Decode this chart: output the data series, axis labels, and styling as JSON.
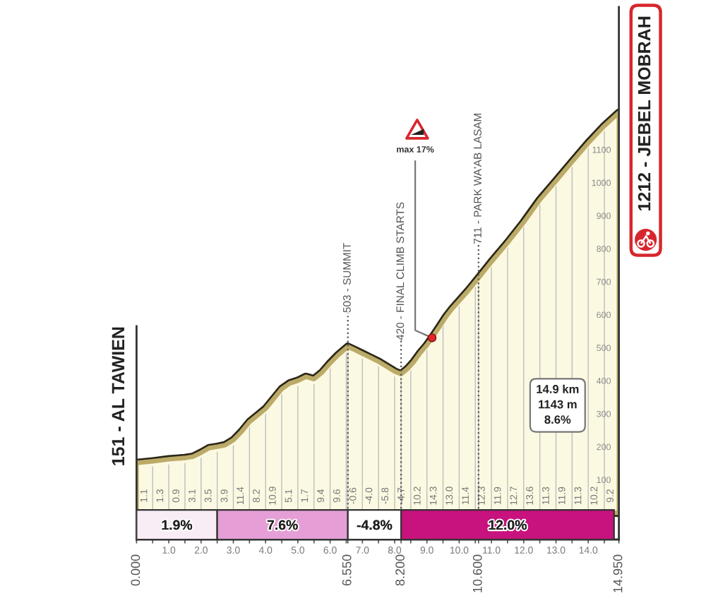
{
  "chart_data": {
    "type": "area",
    "x": [
      0,
      0.5,
      1.0,
      1.5,
      1.75,
      2.0,
      2.25,
      2.5,
      2.75,
      3.0,
      3.25,
      3.5,
      3.75,
      4.0,
      4.25,
      4.5,
      4.75,
      5.0,
      5.25,
      5.5,
      5.75,
      6.0,
      6.25,
      6.55,
      6.75,
      7.0,
      7.25,
      7.5,
      7.75,
      8.0,
      8.2,
      8.4,
      8.6,
      8.8,
      9.0,
      9.16,
      9.4,
      9.6,
      9.8,
      10.0,
      10.3,
      10.6,
      11.0,
      11.5,
      12.0,
      12.5,
      13.0,
      13.5,
      14.0,
      14.5,
      14.95
    ],
    "values": [
      151,
      156,
      162,
      166,
      170,
      182,
      196,
      200,
      205,
      220,
      245,
      275,
      295,
      315,
      345,
      375,
      392,
      400,
      412,
      405,
      425,
      453,
      478,
      503,
      494,
      482,
      470,
      458,
      443,
      428,
      420,
      436,
      458,
      485,
      508,
      530,
      565,
      595,
      620,
      642,
      675,
      711,
      760,
      818,
      880,
      948,
      1005,
      1063,
      1120,
      1172,
      1212
    ],
    "color": "#fcf9e2",
    "xlim": [
      0,
      14.95
    ],
    "ylim": [
      -81,
      1532
    ],
    "xticks": [
      {
        "value": 0,
        "label": null
      },
      {
        "value": 0.5,
        "label": null
      },
      {
        "value": 1,
        "label": "1.0"
      },
      {
        "value": 1.5,
        "label": null
      },
      {
        "value": 2,
        "label": "2.0"
      },
      {
        "value": 2.5,
        "label": null
      },
      {
        "value": 3,
        "label": "3.0"
      },
      {
        "value": 3.5,
        "label": null
      },
      {
        "value": 4,
        "label": "4.0"
      },
      {
        "value": 4.5,
        "label": null
      },
      {
        "value": 5,
        "label": "5.0"
      },
      {
        "value": 5.5,
        "label": null
      },
      {
        "value": 6,
        "label": "6.0"
      },
      {
        "value": 6.5,
        "label": null
      },
      {
        "value": 6.55,
        "label": null
      },
      {
        "value": 7,
        "label": "7.0"
      },
      {
        "value": 7.5,
        "label": null
      },
      {
        "value": 8,
        "label": "8.0"
      },
      {
        "value": 8.2,
        "label": null
      },
      {
        "value": 8.5,
        "label": null
      },
      {
        "value": 9,
        "label": "9.0"
      },
      {
        "value": 9.5,
        "label": null
      },
      {
        "value": 10,
        "label": "10.0"
      },
      {
        "value": 10.5,
        "label": null
      },
      {
        "value": 10.6,
        "label": null
      },
      {
        "value": 11,
        "label": "11.0"
      },
      {
        "value": 11.5,
        "label": null
      },
      {
        "value": 12,
        "label": "12.0"
      },
      {
        "value": 12.5,
        "label": null
      },
      {
        "value": 13,
        "label": "13.0"
      },
      {
        "value": 13.5,
        "label": null
      },
      {
        "value": 14,
        "label": "14.0"
      },
      {
        "value": 14.5,
        "label": null
      },
      {
        "value": 14.95,
        "label": null
      }
    ],
    "yticks": [
      100,
      200,
      300,
      400,
      500,
      600,
      700,
      800,
      900,
      1000,
      1100
    ],
    "grid": "x",
    "ref_lines": [
      {
        "axis": "x",
        "value": 6.55,
        "label": "503 - SUMMIT",
        "color": "#555555",
        "line_style": "dotted"
      },
      {
        "axis": "x",
        "value": 8.2,
        "label": "420 - FINAL CLIMB STARTS",
        "color": "#555555",
        "line_style": "dotted"
      },
      {
        "axis": "x",
        "value": 10.6,
        "label": "711 - PARK WA'AB LASAM",
        "color": "#555555",
        "line_style": "dotted"
      }
    ],
    "bands": [
      {
        "axis": "x",
        "from": 0,
        "to": 2.5,
        "label": "1.9%",
        "color": "#f8edf4"
      },
      {
        "axis": "x",
        "from": 2.5,
        "to": 6.55,
        "label": "7.6%",
        "color": "#e59fd6"
      },
      {
        "axis": "x",
        "from": 6.55,
        "to": 8.2,
        "label": "-4.8%",
        "color": "#ffffff"
      },
      {
        "axis": "x",
        "from": 8.2,
        "to": 14.8,
        "label": "12.0%",
        "color": "#c8127e"
      }
    ],
    "annotations": [
      {
        "text": "151 - AL TAWIEN",
        "x": 0,
        "y": 151
      },
      {
        "text": "1212 - JEBEL MOBRAH",
        "x": 14.95,
        "y": 1212
      },
      {
        "text": "max 17%",
        "x": 9.16,
        "y": 530
      },
      "14.9 km\n1143 m\n8.6%",
      "0.000",
      "6.550",
      "8.200",
      "10.600",
      "14.950",
      "1.1",
      "1.3",
      "0.9",
      "3.1",
      "3.5",
      "3.9",
      "11.4",
      "8.2",
      "10.9",
      "5.1",
      "1.7",
      "9.4",
      "9.6",
      "-0.6",
      "-4.0",
      "-5.8",
      "-4.7",
      "10.2",
      "14.3",
      "13.0",
      "11.4",
      "12.3",
      "11.9",
      "12.7",
      "13.6",
      "11.3",
      "11.9",
      "11.3",
      "10.2",
      "9.2"
    ]
  }
}
